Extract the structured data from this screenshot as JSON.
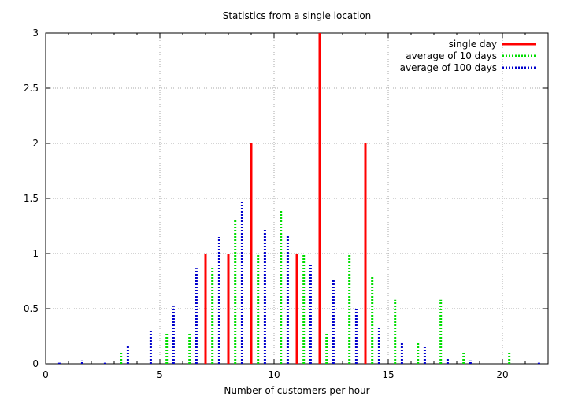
{
  "chart_data": {
    "type": "bar",
    "title": "Statistics from a single location",
    "xlabel": "Number of customers per hour",
    "ylabel": "",
    "xlim": [
      0,
      22
    ],
    "ylim": [
      0,
      3
    ],
    "xticks": [
      0,
      5,
      10,
      15,
      20
    ],
    "yticks": [
      0,
      0.5,
      1,
      1.5,
      2,
      2.5,
      3
    ],
    "grid": true,
    "legend_position": "top-right",
    "series": [
      {
        "name": "single day",
        "color": "#ff0000",
        "style": "solid",
        "x": [
          7,
          8,
          9,
          11,
          12,
          14
        ],
        "values": [
          1,
          1,
          2,
          1,
          3,
          2
        ]
      },
      {
        "name": "average of 10 days",
        "color": "#00dd00",
        "style": "dotted",
        "x": [
          3.3,
          5.3,
          6.3,
          7.3,
          8.3,
          9.3,
          10.3,
          11.3,
          12.3,
          13.3,
          14.3,
          15.3,
          16.3,
          17.3,
          18.3,
          20.3
        ],
        "values": [
          0.1,
          0.28,
          0.28,
          0.88,
          1.3,
          1.0,
          1.4,
          1.0,
          0.28,
          1.0,
          0.8,
          0.58,
          0.2,
          0.58,
          0.1,
          0.1
        ]
      },
      {
        "name": "average of 100 days",
        "color": "#0000cc",
        "style": "dotted",
        "x": [
          0.6,
          1.6,
          2.6,
          3.6,
          4.6,
          5.6,
          6.6,
          7.6,
          8.6,
          9.6,
          10.6,
          11.6,
          12.6,
          13.6,
          14.6,
          15.6,
          16.6,
          17.6,
          18.6,
          21.6
        ],
        "values": [
          0.01,
          0.03,
          0.01,
          0.16,
          0.3,
          0.52,
          0.87,
          1.15,
          1.47,
          1.23,
          1.16,
          0.91,
          0.76,
          0.51,
          0.33,
          0.19,
          0.15,
          0.05,
          0.03,
          0.01
        ]
      }
    ]
  }
}
